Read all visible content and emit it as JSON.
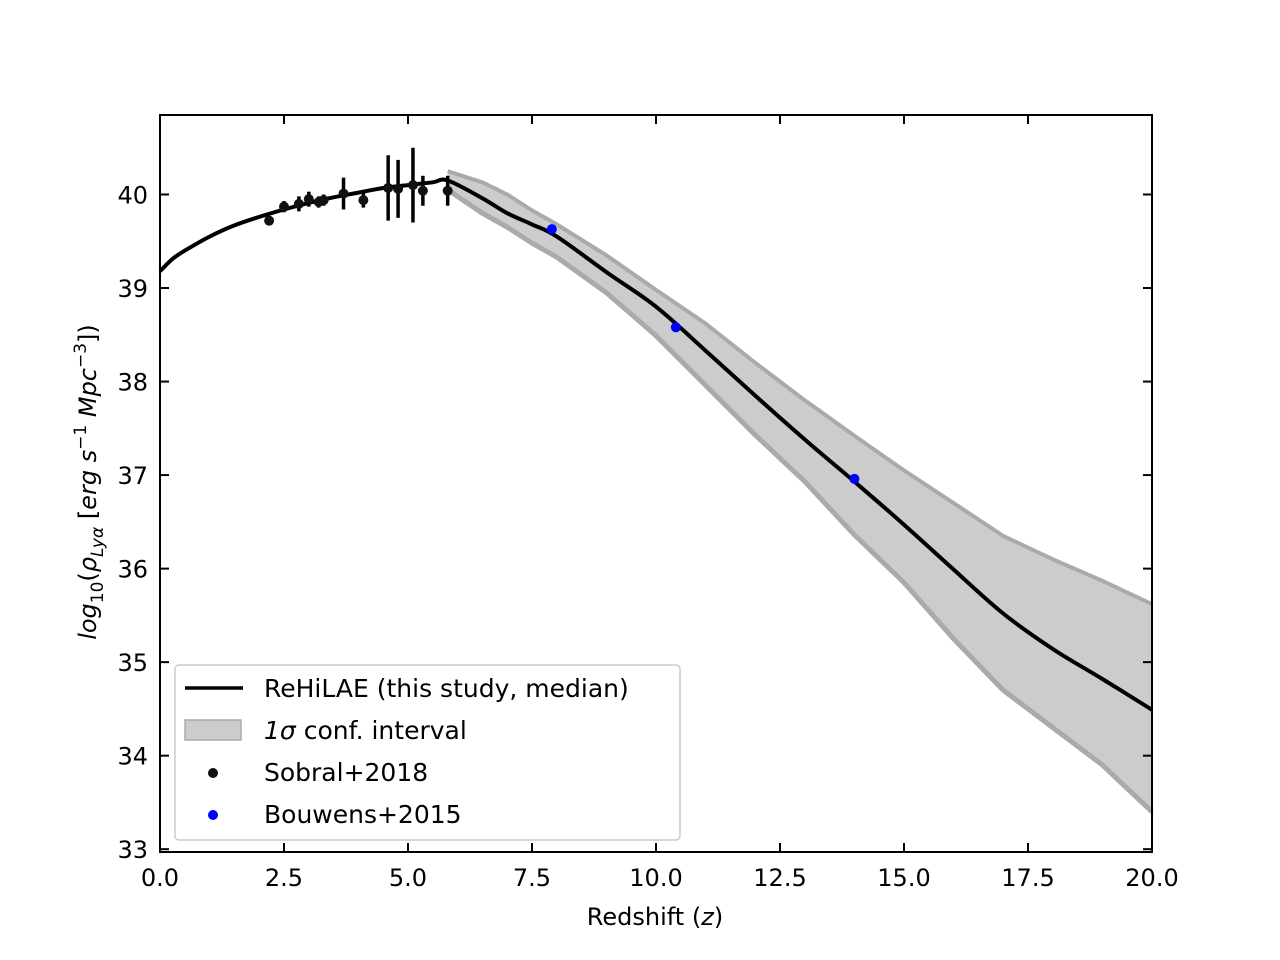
{
  "chart_data": {
    "type": "line",
    "title": "",
    "xlabel": {
      "prefix": "Redshift (",
      "var": "z",
      "suffix": ")"
    },
    "ylabel": {
      "text": "log10(ρLyα [erg s−1 Mpc−3])"
    },
    "xlim": [
      0,
      20
    ],
    "ylim": [
      32.97,
      40.85
    ],
    "xticks": [
      "0.0",
      "2.5",
      "5.0",
      "7.5",
      "10.0",
      "12.5",
      "15.0",
      "17.5",
      "20.0"
    ],
    "yticks": [
      "33",
      "34",
      "35",
      "36",
      "37",
      "38",
      "39",
      "40"
    ],
    "grid": false,
    "legend_position": "lower-left",
    "legend": {
      "median": "ReHiLAE (this study, median)",
      "band_var": "1σ",
      "band_rest": " conf. interval",
      "sobral": "Sobral+2018",
      "bouwens": "Bouwens+2015"
    },
    "colors": {
      "median": "#000000",
      "band_fill": "#cccccc",
      "band_edge": "#aaaaaa",
      "sobral": "#111111",
      "bouwens": "#0000ff"
    },
    "median_curve": {
      "x": [
        0.0,
        0.25,
        0.5,
        1.0,
        1.5,
        2.0,
        2.5,
        3.0,
        3.5,
        4.0,
        4.5,
        5.0,
        5.5,
        5.8,
        6.5,
        7.0,
        7.5,
        8.0,
        9.0,
        10.0,
        11.0,
        12.0,
        13.0,
        14.0,
        15.0,
        16.0,
        17.0,
        18.0,
        19.0,
        20.0
      ],
      "y": [
        39.18,
        39.31,
        39.4,
        39.55,
        39.67,
        39.76,
        39.84,
        39.91,
        39.97,
        40.02,
        40.07,
        40.1,
        40.13,
        40.15,
        39.96,
        39.8,
        39.68,
        39.55,
        39.17,
        38.8,
        38.33,
        37.85,
        37.38,
        36.93,
        36.47,
        35.99,
        35.52,
        35.14,
        34.82,
        34.49
      ]
    },
    "confidence_band": {
      "x": [
        5.8,
        6.5,
        7.0,
        7.5,
        8.0,
        9.0,
        10.0,
        11.0,
        12.0,
        13.0,
        14.0,
        15.0,
        16.0,
        17.0,
        18.0,
        19.0,
        20.0
      ],
      "upper": [
        40.25,
        40.13,
        40.0,
        39.83,
        39.68,
        39.35,
        38.98,
        38.62,
        38.2,
        37.8,
        37.42,
        37.05,
        36.7,
        36.35,
        36.1,
        35.87,
        35.62
      ],
      "lower": [
        40.05,
        39.8,
        39.65,
        39.48,
        39.33,
        38.95,
        38.49,
        37.96,
        37.43,
        36.93,
        36.36,
        35.85,
        35.25,
        34.7,
        34.3,
        33.9,
        33.4
      ]
    },
    "series": [
      {
        "name": "Sobral+2018",
        "type": "scatter-errorbar",
        "x": [
          2.2,
          2.5,
          2.8,
          3.0,
          3.2,
          3.3,
          3.7,
          4.1,
          4.6,
          4.8,
          5.1,
          5.3,
          5.8
        ],
        "y": [
          39.72,
          39.87,
          39.9,
          39.95,
          39.92,
          39.94,
          40.01,
          39.94,
          40.07,
          40.06,
          40.1,
          40.04,
          40.04
        ],
        "yerr": [
          0.0,
          0.06,
          0.08,
          0.08,
          0.06,
          0.06,
          0.17,
          0.08,
          0.35,
          0.31,
          0.4,
          0.16,
          0.16
        ]
      },
      {
        "name": "Bouwens+2015",
        "type": "scatter",
        "x": [
          7.9,
          10.4,
          14.0
        ],
        "y": [
          39.63,
          38.58,
          36.96
        ]
      }
    ]
  }
}
